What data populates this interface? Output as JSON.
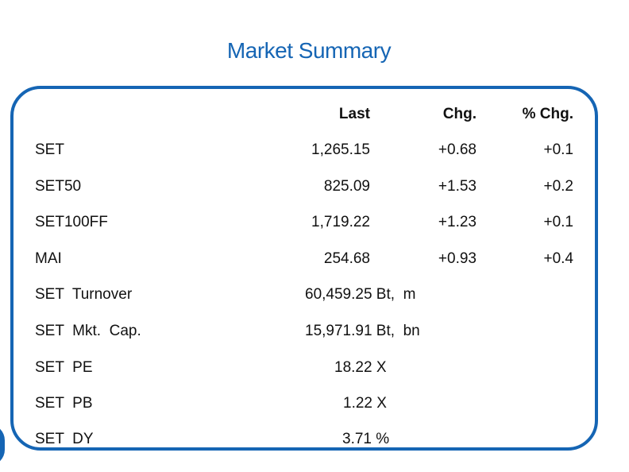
{
  "title": "Market Summary",
  "headers": {
    "last": "Last",
    "chg": "Chg.",
    "pct": "% Chg."
  },
  "indices": [
    {
      "name": "SET",
      "last": "1,265.15",
      "chg": "+0.68",
      "pct": "+0.1"
    },
    {
      "name": "SET50",
      "last": "825.09",
      "chg": "+1.53",
      "pct": "+0.2"
    },
    {
      "name": "SET100FF",
      "last": "1,719.22",
      "chg": "+1.23",
      "pct": "+0.1"
    },
    {
      "name": "MAI",
      "last": "254.68",
      "chg": "+0.93",
      "pct": "+0.4"
    }
  ],
  "stats": [
    {
      "name": "SET  Turnover",
      "value": "60,459.25 Bt,  m"
    },
    {
      "name": "SET  Mkt.  Cap.",
      "value": "15,971.91 Bt,  bn"
    },
    {
      "name": "SET  PE",
      "value": "18.22 X"
    },
    {
      "name": "SET  PB",
      "value": "1.22 X"
    },
    {
      "name": "SET  DY",
      "value": "3.71 %"
    }
  ],
  "colors": {
    "accent": "#1565b4",
    "text": "#111111"
  }
}
